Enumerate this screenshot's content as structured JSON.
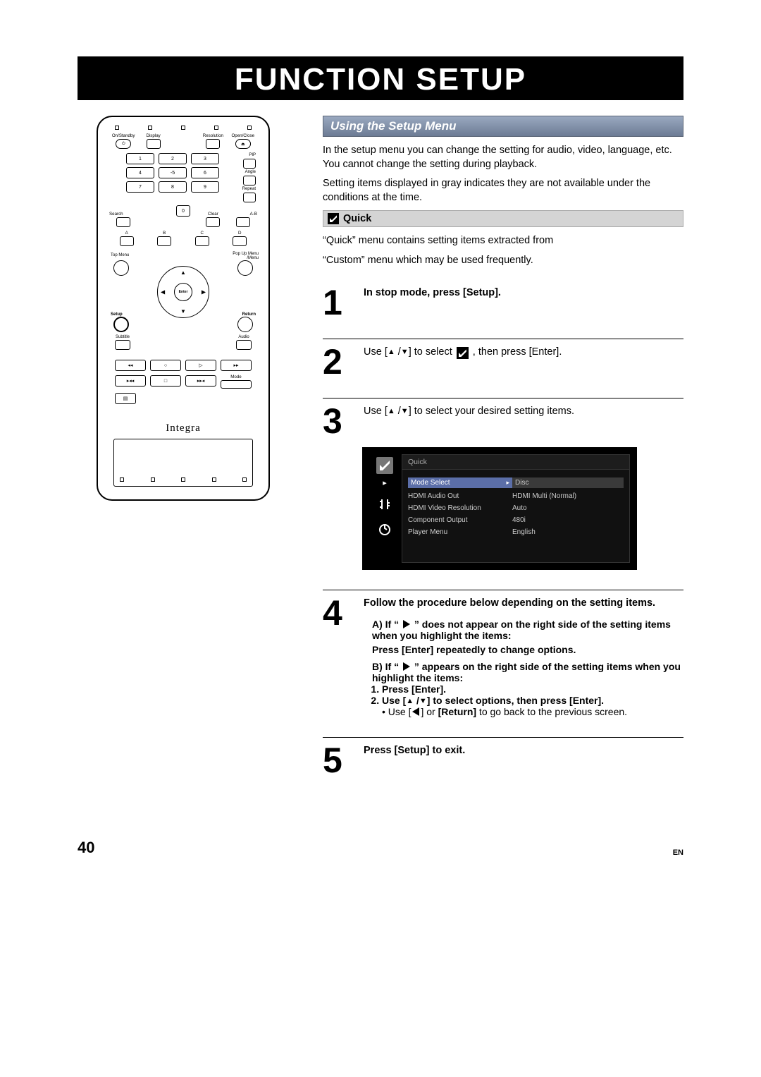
{
  "title": "FUNCTION SETUP",
  "page_number": "40",
  "lang": "EN",
  "remote": {
    "brand": "Integra",
    "top_labels": [
      "On/Standby",
      "Display",
      "",
      "Resolution",
      "Open/Close"
    ],
    "side": {
      "pip": "PIP",
      "angle": "Angle",
      "repeat": "Repeat"
    },
    "nums": [
      "1",
      "2",
      "3",
      "4",
      "-5",
      "6",
      "7",
      "8",
      "9",
      "0"
    ],
    "row_labels": {
      "search": "Search",
      "clear": "Clear",
      "ab": "A-B"
    },
    "abcd": [
      "A",
      "B",
      "C",
      "D"
    ],
    "nav": {
      "topmenu": "Top Menu",
      "popup": "Pop Up Menu\n/Menu",
      "setup": "Setup",
      "return": "Return",
      "enter": "Enter"
    },
    "subrow": {
      "subtitle": "Subtitle",
      "audio": "Audio"
    },
    "transport": [
      "◂◂",
      "○",
      "▷",
      "▸▸",
      "▸◂◂",
      "□",
      "▸▸◂",
      "Mode"
    ]
  },
  "section": {
    "header": "Using the Setup Menu",
    "intro1": "In the setup menu you can change the setting for audio, video, language, etc. You cannot change the setting during playback.",
    "intro2": "Setting items displayed in gray indicates they are not available under the conditions at the time.",
    "quick_label": "Quick",
    "quick_p1": "“Quick” menu contains setting items extracted from",
    "quick_p2": "“Custom” menu which may be used frequently."
  },
  "steps": {
    "s1": "In stop mode, press [Setup].",
    "s2a": "Use [",
    "s2b": " /",
    "s2c": "] to select ",
    "s2d": " , then press [Enter].",
    "s3a": "Use [",
    "s3b": " /",
    "s3c": "] to select your desired setting items.",
    "s4": "Follow the procedure below depending on the setting items.",
    "s4Aa": "A) If “ ",
    "s4Ab": " ” does not appear on the right side of the setting items when you highlight the items:",
    "s4A2": "Press [Enter] repeatedly to change options.",
    "s4Ba": "B) If “ ",
    "s4Bb": " ” appears on the right side of the setting items when you highlight the items:",
    "s4B1": "Press [Enter].",
    "s4B2a": "Use [",
    "s4B2b": " /",
    "s4B2c": "] to select options, then press [Enter].",
    "s4B2da": "Use [",
    "s4B2db": "] or ",
    "s4B2dc": "[Return]",
    "s4B2dd": " to go back to the previous screen.",
    "s5": "Press [Setup] to exit."
  },
  "menu": {
    "tab": "Quick",
    "rows": [
      {
        "label": "Mode Select",
        "value": "Disc",
        "selected": true
      },
      {
        "label": "HDMI Audio Out",
        "value": "HDMI Multi (Normal)"
      },
      {
        "label": "HDMI Video Resolution",
        "value": "Auto"
      },
      {
        "label": "Component Output",
        "value": "480i"
      },
      {
        "label": "Player Menu",
        "value": "English"
      }
    ],
    "colors": {
      "bg": "#000000",
      "panel": "#111111",
      "sel_bg": "#5b6ea8",
      "text": "#cccccc"
    }
  }
}
